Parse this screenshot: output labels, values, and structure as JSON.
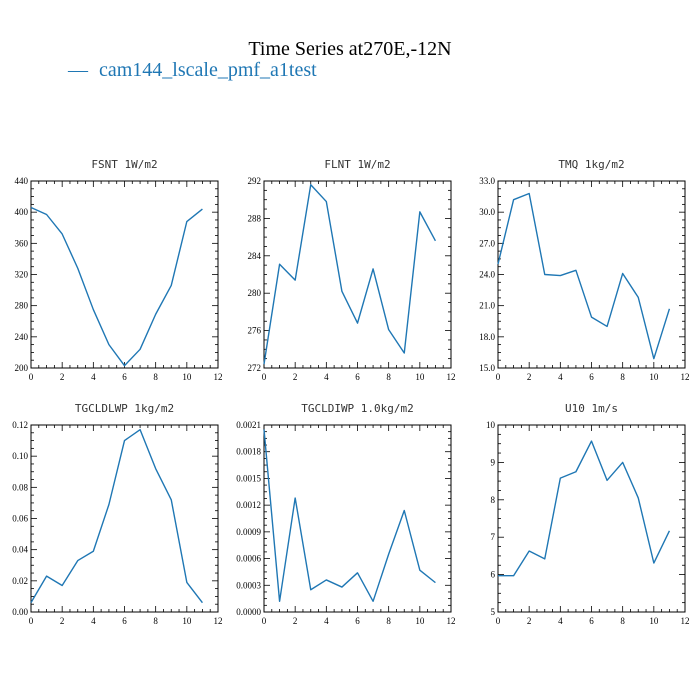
{
  "figure": {
    "title": "Time Series at270E,-12N",
    "legend": {
      "marker": "—",
      "label": "cam144_lscale_pmf_a1test"
    },
    "line_color": "#1f77b4"
  },
  "chart_data": [
    {
      "type": "line",
      "title": "FSNT   1W/m2",
      "x": [
        0,
        1,
        2,
        3,
        4,
        5,
        6,
        7,
        8,
        9,
        10,
        11
      ],
      "series": [
        {
          "values": [
            406,
            397,
            372,
            328,
            275,
            230,
            203,
            224,
            269,
            306,
            388,
            404
          ]
        }
      ],
      "xlim": [
        0,
        12
      ],
      "ylim": [
        200,
        440
      ],
      "xticks": [
        0,
        2,
        4,
        6,
        8,
        10,
        12
      ],
      "yticks": [
        200,
        240,
        280,
        320,
        360,
        400,
        440
      ],
      "ytick_labels": [
        "200",
        "240",
        "280",
        "320",
        "360",
        "400",
        "440"
      ]
    },
    {
      "type": "line",
      "title": "FLNT   1W/m2",
      "x": [
        0,
        1,
        2,
        3,
        4,
        5,
        6,
        7,
        8,
        9,
        10,
        11
      ],
      "series": [
        {
          "values": [
            272.4,
            283.1,
            281.4,
            291.6,
            289.8,
            280.2,
            276.8,
            282.6,
            276.1,
            273.6,
            288.7,
            285.6
          ]
        }
      ],
      "xlim": [
        0,
        12
      ],
      "ylim": [
        272,
        292
      ],
      "xticks": [
        0,
        2,
        4,
        6,
        8,
        10,
        12
      ],
      "yticks": [
        272,
        276,
        280,
        284,
        288,
        292
      ],
      "ytick_labels": [
        "272",
        "276",
        "280",
        "284",
        "288",
        "292"
      ]
    },
    {
      "type": "line",
      "title": "TMQ   1kg/m2",
      "x": [
        0,
        1,
        2,
        3,
        4,
        5,
        6,
        7,
        8,
        9,
        10,
        11
      ],
      "series": [
        {
          "values": [
            25.0,
            31.2,
            31.8,
            24.0,
            23.9,
            24.4,
            19.9,
            19.0,
            24.1,
            21.8,
            15.9,
            20.7
          ]
        }
      ],
      "xlim": [
        0,
        12
      ],
      "ylim": [
        15,
        33
      ],
      "xticks": [
        0,
        2,
        4,
        6,
        8,
        10,
        12
      ],
      "yticks": [
        15,
        18,
        21,
        24,
        27,
        30,
        33
      ],
      "ytick_labels": [
        "15.0",
        "18.0",
        "21.0",
        "24.0",
        "27.0",
        "30.0",
        "33.0"
      ]
    },
    {
      "type": "line",
      "title": "TGCLDLWP   1kg/m2",
      "x": [
        0,
        1,
        2,
        3,
        4,
        5,
        6,
        7,
        8,
        9,
        10,
        11
      ],
      "series": [
        {
          "values": [
            0.006,
            0.023,
            0.017,
            0.033,
            0.039,
            0.069,
            0.11,
            0.117,
            0.092,
            0.072,
            0.019,
            0.006
          ]
        }
      ],
      "xlim": [
        0,
        12
      ],
      "ylim": [
        0,
        0.12
      ],
      "xticks": [
        0,
        2,
        4,
        6,
        8,
        10,
        12
      ],
      "yticks": [
        0,
        0.02,
        0.04,
        0.06,
        0.08,
        0.1,
        0.12
      ],
      "ytick_labels": [
        "0.00",
        "0.02",
        "0.04",
        "0.06",
        "0.08",
        "0.10",
        "0.12"
      ]
    },
    {
      "type": "line",
      "title": "TGCLDIWP   1.0kg/m2",
      "x": [
        0,
        1,
        2,
        3,
        4,
        5,
        6,
        7,
        8,
        9,
        10,
        11
      ],
      "series": [
        {
          "values": [
            0.00205,
            0.00012,
            0.00128,
            0.00025,
            0.00036,
            0.00028,
            0.00044,
            0.00012,
            0.00065,
            0.00114,
            0.00047,
            0.00033
          ]
        }
      ],
      "xlim": [
        0,
        12
      ],
      "ylim": [
        0,
        0.0021
      ],
      "xticks": [
        0,
        2,
        4,
        6,
        8,
        10,
        12
      ],
      "yticks": [
        0,
        0.0003,
        0.0006,
        0.0009,
        0.0012,
        0.0015,
        0.0018,
        0.0021
      ],
      "ytick_labels": [
        "0.0000",
        "0.0003",
        "0.0006",
        "0.0009",
        "0.0012",
        "0.0015",
        "0.0018",
        "0.0021"
      ]
    },
    {
      "type": "line",
      "title": "U10   1m/s",
      "x": [
        0,
        1,
        2,
        3,
        4,
        5,
        6,
        7,
        8,
        9,
        10,
        11
      ],
      "series": [
        {
          "values": [
            5.97,
            5.97,
            6.63,
            6.42,
            8.58,
            8.75,
            9.57,
            8.52,
            9.0,
            8.05,
            6.31,
            7.17
          ]
        }
      ],
      "xlim": [
        0,
        12
      ],
      "ylim": [
        5,
        10
      ],
      "xticks": [
        0,
        2,
        4,
        6,
        8,
        10,
        12
      ],
      "yticks": [
        5,
        6,
        7,
        8,
        9,
        10
      ],
      "ytick_labels": [
        "5",
        "6",
        "7",
        "8",
        "9",
        "10"
      ]
    }
  ]
}
